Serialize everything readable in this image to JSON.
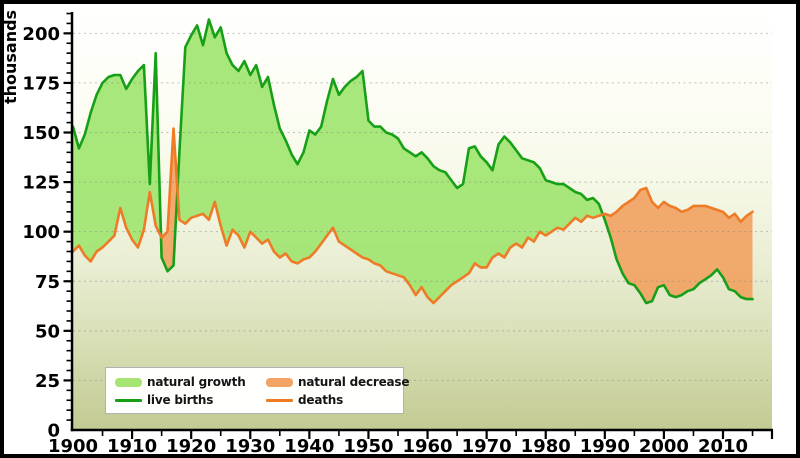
{
  "window": {
    "kind": "statistics-chart",
    "border_color": "#000000"
  },
  "y_axis": {
    "title": "thousands",
    "tick_labels": [
      "0",
      "25",
      "50",
      "75",
      "100",
      "125",
      "150",
      "175",
      "200"
    ],
    "major_step": 25,
    "minor_step": 5,
    "max_extent": 210
  },
  "x_axis": {
    "tick_labels": [
      "1900",
      "1910",
      "1920",
      "1930",
      "1940",
      "1950",
      "1960",
      "1970",
      "1980",
      "1990",
      "2000",
      "2010"
    ],
    "major_step_years": 10,
    "minor_step_years": 5,
    "first_year": 1900,
    "last_data_year": 2015
  },
  "legend": {
    "items": [
      {
        "label": "natural growth",
        "swatch": "area",
        "color": "#a6e573"
      },
      {
        "label": "natural decrease",
        "swatch": "area",
        "color": "#f3a465"
      },
      {
        "label": "live births",
        "swatch": "line",
        "color": "#17a017"
      },
      {
        "label": "deaths",
        "swatch": "line",
        "color": "#ee7b26"
      }
    ]
  },
  "colors": {
    "births_line": "#17a017",
    "deaths_line": "#ee7b26",
    "growth_fill": "#9fe46e",
    "decrease_fill": "#f2a160",
    "plot_bg_top": "#ffffff",
    "plot_bg_mid": "#e9edd2",
    "plot_bg_bottom": "#c3ca92",
    "grid": "#808080",
    "axis": "#000000",
    "tick_text": "#000000"
  },
  "chart_data": {
    "type": "area",
    "title": "",
    "xlabel": "",
    "ylabel": "thousands",
    "ylim": [
      0,
      210
    ],
    "xlim": [
      1900,
      2016
    ],
    "grid": "horizontal dashed lines every 25 thousand",
    "legend_position": "bottom-left inside plot",
    "years": [
      1900,
      1901,
      1902,
      1903,
      1904,
      1905,
      1906,
      1907,
      1908,
      1909,
      1910,
      1911,
      1912,
      1913,
      1914,
      1915,
      1916,
      1917,
      1918,
      1919,
      1920,
      1921,
      1922,
      1923,
      1924,
      1925,
      1926,
      1927,
      1928,
      1929,
      1930,
      1931,
      1932,
      1933,
      1934,
      1935,
      1936,
      1937,
      1938,
      1939,
      1940,
      1941,
      1942,
      1943,
      1944,
      1945,
      1946,
      1947,
      1948,
      1949,
      1950,
      1951,
      1952,
      1953,
      1954,
      1955,
      1956,
      1957,
      1958,
      1959,
      1960,
      1961,
      1962,
      1963,
      1964,
      1965,
      1966,
      1967,
      1968,
      1969,
      1970,
      1971,
      1972,
      1973,
      1974,
      1975,
      1976,
      1977,
      1978,
      1979,
      1980,
      1981,
      1982,
      1983,
      1984,
      1985,
      1986,
      1987,
      1988,
      1989,
      1990,
      1991,
      1992,
      1993,
      1994,
      1995,
      1996,
      1997,
      1998,
      1999,
      2000,
      2001,
      2002,
      2003,
      2004,
      2005,
      2006,
      2007,
      2008,
      2009,
      2010,
      2011,
      2012,
      2013,
      2014,
      2015
    ],
    "series": [
      {
        "name": "live births",
        "values": [
          153,
          142,
          149,
          160,
          169,
          175,
          178,
          179,
          179,
          172,
          177,
          181,
          184,
          124,
          190,
          87,
          80,
          83,
          140,
          193,
          199,
          204,
          194,
          207,
          198,
          203,
          190,
          184,
          181,
          186,
          179,
          184,
          173,
          178,
          164,
          152,
          146,
          139,
          134,
          140,
          151,
          149,
          153,
          166,
          177,
          169,
          173,
          176,
          178,
          181,
          156,
          153,
          153,
          150,
          149,
          147,
          142,
          140,
          138,
          140,
          137,
          133,
          131,
          130,
          126,
          122,
          124,
          142,
          143,
          138,
          135,
          131,
          144,
          148,
          145,
          141,
          137,
          136,
          135,
          132,
          126,
          125,
          124,
          124,
          122,
          120,
          119,
          116,
          117,
          114,
          106,
          97,
          86,
          79,
          74,
          73,
          69,
          64,
          65,
          72,
          73,
          68,
          67,
          68,
          70,
          71,
          74,
          76,
          78,
          81,
          77,
          71,
          70,
          67,
          66,
          66
        ]
      },
      {
        "name": "deaths",
        "values": [
          90,
          93,
          88,
          85,
          90,
          92,
          95,
          98,
          112,
          102,
          96,
          92,
          101,
          120,
          103,
          97,
          100,
          152,
          106,
          104,
          107,
          108,
          109,
          106,
          115,
          103,
          93,
          101,
          98,
          92,
          100,
          97,
          94,
          96,
          90,
          87,
          89,
          85,
          84,
          86,
          87,
          90,
          94,
          98,
          102,
          95,
          93,
          91,
          89,
          87,
          86,
          84,
          83,
          80,
          79,
          78,
          77,
          73,
          68,
          72,
          67,
          64,
          67,
          70,
          73,
          75,
          77,
          79,
          84,
          82,
          82,
          87,
          89,
          87,
          92,
          94,
          92,
          97,
          95,
          100,
          98,
          100,
          102,
          101,
          104,
          107,
          105,
          108,
          107,
          108,
          109,
          108,
          110,
          113,
          115,
          117,
          121,
          122,
          115,
          112,
          115,
          113,
          112,
          110,
          111,
          113,
          113,
          113,
          112,
          111,
          110,
          107,
          109,
          105,
          108,
          110
        ]
      }
    ],
    "fills": [
      {
        "name": "natural growth",
        "rule": "area between curves where live births > deaths"
      },
      {
        "name": "natural decrease",
        "rule": "area between curves where deaths > live births"
      }
    ]
  }
}
